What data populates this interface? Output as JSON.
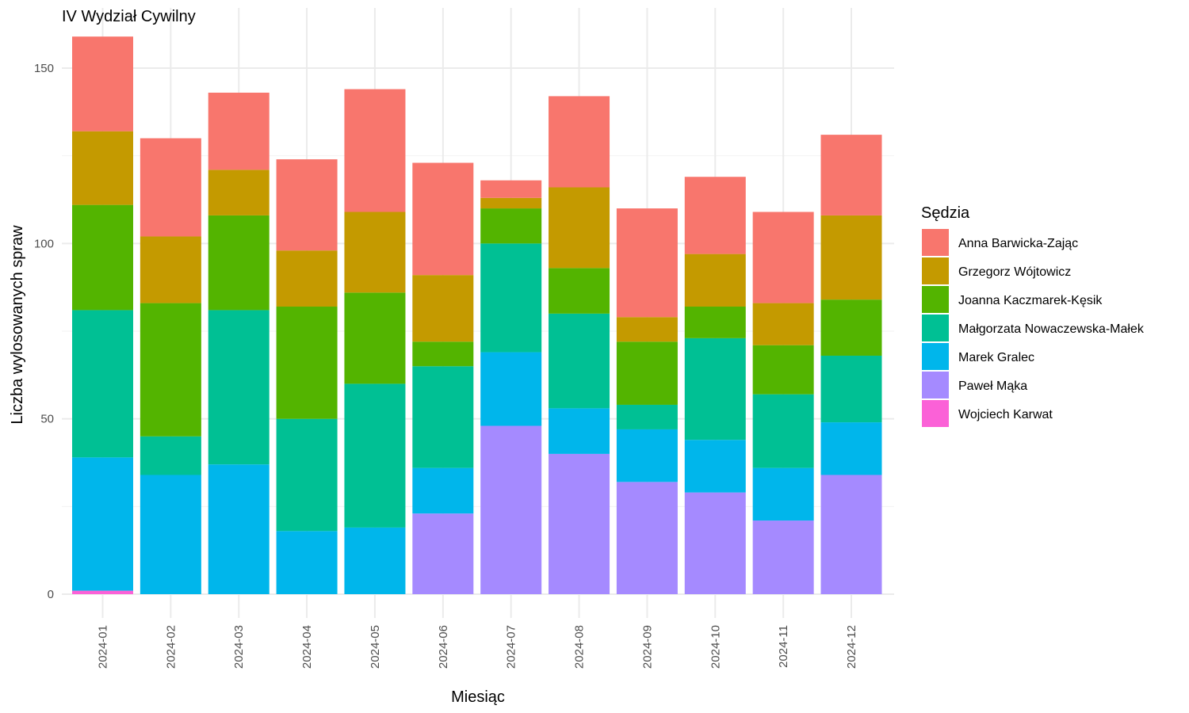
{
  "chart_data": {
    "type": "bar",
    "stacked": true,
    "title": "IV Wydział Cywilny",
    "xlabel": "Miesiąc",
    "ylabel": "Liczba wylosowanych spraw",
    "ylim": [
      0,
      160
    ],
    "yticks": [
      0,
      50,
      100,
      150
    ],
    "grid": true,
    "legend": {
      "title": "Sędzia",
      "position": "right"
    },
    "categories": [
      "2024-01",
      "2024-02",
      "2024-03",
      "2024-04",
      "2024-05",
      "2024-06",
      "2024-07",
      "2024-08",
      "2024-09",
      "2024-10",
      "2024-11",
      "2024-12"
    ],
    "series": [
      {
        "name": "Anna Barwicka-Zając",
        "color": "#F8766D",
        "values": [
          27,
          28,
          22,
          26,
          35,
          32,
          5,
          26,
          31,
          22,
          26,
          23
        ]
      },
      {
        "name": "Grzegorz Wójtowicz",
        "color": "#C49A00",
        "values": [
          21,
          19,
          13,
          16,
          23,
          19,
          3,
          23,
          7,
          15,
          12,
          24
        ]
      },
      {
        "name": "Joanna Kaczmarek-Kęsik",
        "color": "#53B400",
        "values": [
          30,
          38,
          27,
          32,
          26,
          7,
          10,
          13,
          18,
          9,
          14,
          16
        ]
      },
      {
        "name": "Małgorzata Nowaczewska-Małek",
        "color": "#00C094",
        "values": [
          42,
          11,
          44,
          32,
          41,
          29,
          31,
          27,
          7,
          29,
          21,
          19
        ]
      },
      {
        "name": "Marek Gralec",
        "color": "#00B6EB",
        "values": [
          38,
          34,
          37,
          18,
          19,
          13,
          21,
          13,
          15,
          15,
          15,
          15
        ]
      },
      {
        "name": "Paweł Mąka",
        "color": "#A58AFF",
        "values": [
          0,
          0,
          0,
          0,
          0,
          23,
          48,
          40,
          32,
          29,
          21,
          34
        ]
      },
      {
        "name": "Wojciech Karwat",
        "color": "#FB61D7",
        "values": [
          1,
          0,
          0,
          0,
          0,
          0,
          0,
          0,
          0,
          0,
          0,
          0
        ]
      }
    ]
  }
}
